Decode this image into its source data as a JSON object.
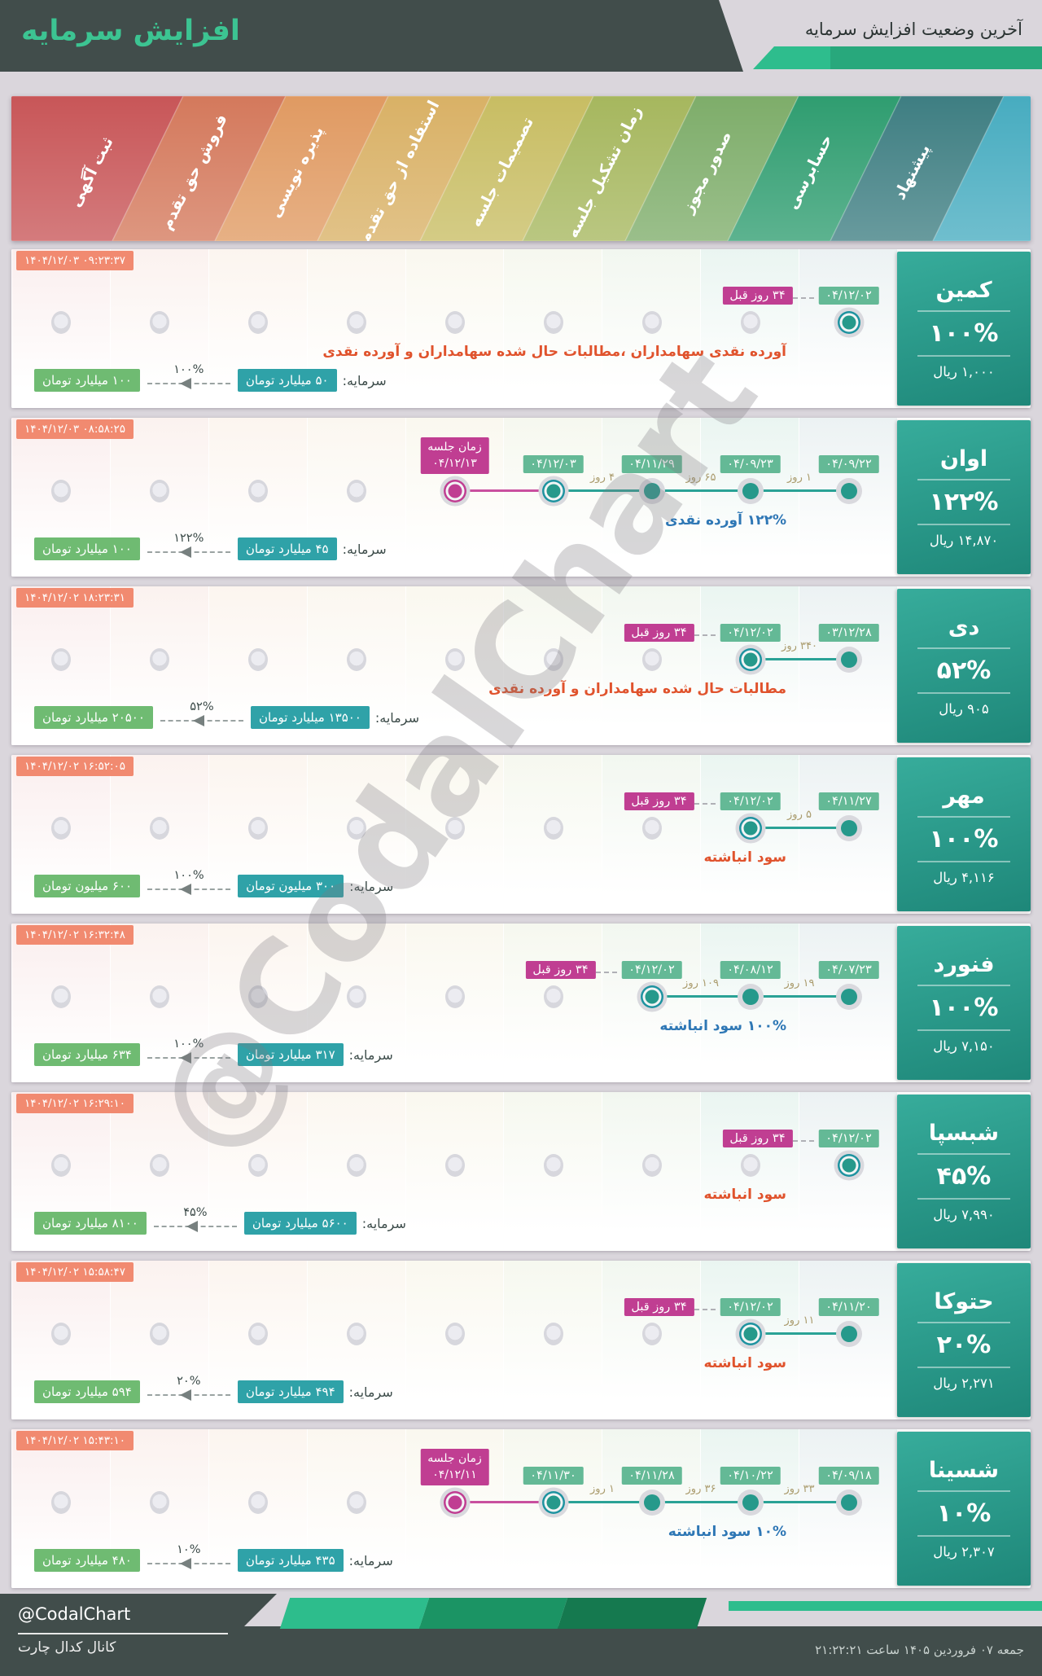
{
  "header": {
    "title": "افزایش سرمایه",
    "subtitle": "آخرین وضعیت افزایش سرمایه"
  },
  "banner": {
    "stages": [
      {
        "label": "ثبت آگهی",
        "color": "#c85658"
      },
      {
        "label": "فروش حق تقدم",
        "color": "#d4795c"
      },
      {
        "label": "پذیره نویسی",
        "color": "#e09a62"
      },
      {
        "label": "استفاده از حق تقدم",
        "color": "#d9b166"
      },
      {
        "label": "تصمیمات جلسه",
        "color": "#c8bd63"
      },
      {
        "label": "زمان تشکیل جلسه",
        "color": "#a6b75e"
      },
      {
        "label": "صدور مجوز",
        "color": "#7ead6a"
      },
      {
        "label": "حسابرسی",
        "color": "#2f9d70"
      },
      {
        "label": "پیشنهاد",
        "color": "#3e7e82"
      },
      {
        "label": "",
        "color": "#47acc0"
      }
    ]
  },
  "colors": {
    "accent_green": "#2ebd8d",
    "dark_slate": "#414d4b",
    "timestamp_bg": "#f18a70",
    "date_badge": "#64b996",
    "magenta_badge": "#c03e92",
    "dot_teal": "#26998b",
    "ring_outline": "#1e93a0",
    "line_teal": "#2aa296",
    "line_magenta": "#c9509f",
    "desc_red": "#e0532d",
    "desc_blue": "#2e77b5",
    "capital_from_bg": "#2fa2a8",
    "capital_to_bg": "#6fbb72",
    "company_box_top": "#37ac9b",
    "company_box_bottom": "#1e8779"
  },
  "watermark": "@CodalChart",
  "rows": [
    {
      "name": "کمین",
      "percent": "۱۰۰%",
      "price": "۱,۰۰۰ ریال",
      "timestamp": "۱۴۰۴/۱۲/۰۳ ۰۹:۲۳:۳۷",
      "description": "آورده نقدی سهامداران ،مطالبات حال شده سهامداران و آورده نقدی",
      "desc_color": "red",
      "capital_label": "سرمایه:",
      "capital_from": "۵۰ میلیارد تومان",
      "capital_to": "۱۰۰ میلیارد تومان",
      "capital_percent": "۱۰۰%",
      "prev_badge": "۳۴ روز قبل",
      "timeline": {
        "dots": [
          {
            "slot": 9,
            "type": "ringed",
            "date": "۰۴/۱۲/۰۲"
          }
        ],
        "gaps": []
      }
    },
    {
      "name": "اوان",
      "percent": "۱۲۲%",
      "price": "۱۴,۸۷۰ ریال",
      "timestamp": "۱۴۰۴/۱۲/۰۳ ۰۸:۵۸:۲۵",
      "description": "۱۲۲% آورده نقدی",
      "desc_color": "blue",
      "capital_label": "سرمایه:",
      "capital_from": "۴۵ میلیارد تومان",
      "capital_to": "۱۰۰ میلیارد تومان",
      "capital_percent": "۱۲۲%",
      "prev_badge": null,
      "timeline": {
        "dots": [
          {
            "slot": 9,
            "type": "plain",
            "date": "۰۴/۰۹/۲۲"
          },
          {
            "slot": 8,
            "type": "plain",
            "date": "۰۴/۰۹/۲۳"
          },
          {
            "slot": 7,
            "type": "plain",
            "date": "۰۴/۱۱/۲۹"
          },
          {
            "slot": 6,
            "type": "ringed",
            "date": "۰۴/۱۲/۰۳"
          },
          {
            "slot": 5,
            "type": "meeting",
            "label": "زمان جلسه",
            "date": "۰۴/۱۲/۱۳"
          }
        ],
        "gaps": [
          {
            "slots": [
              9,
              8
            ],
            "label": "۱ روز"
          },
          {
            "slots": [
              8,
              7
            ],
            "label": "۶۵ روز"
          },
          {
            "slots": [
              7,
              6
            ],
            "label": "۴ روز"
          }
        ]
      }
    },
    {
      "name": "دی",
      "percent": "۵۲%",
      "price": "۹۰۵ ریال",
      "timestamp": "۱۴۰۴/۱۲/۰۲ ۱۸:۲۳:۳۱",
      "description": "مطالبات حال شده سهامداران و آورده نقدی",
      "desc_color": "red",
      "capital_label": "سرمایه:",
      "capital_from": "۱۳۵۰۰ میلیارد تومان",
      "capital_to": "۲۰۵۰۰ میلیارد تومان",
      "capital_percent": "۵۲%",
      "prev_badge": "۳۴ روز قبل",
      "timeline": {
        "dots": [
          {
            "slot": 9,
            "type": "plain",
            "date": "۰۳/۱۲/۲۸"
          },
          {
            "slot": 8,
            "type": "ringed",
            "date": "۰۴/۱۲/۰۲"
          }
        ],
        "gaps": [
          {
            "slots": [
              9,
              8
            ],
            "label": "۳۴۰ روز"
          }
        ]
      }
    },
    {
      "name": "مهر",
      "percent": "۱۰۰%",
      "price": "۴,۱۱۶ ریال",
      "timestamp": "۱۴۰۴/۱۲/۰۲ ۱۶:۵۲:۰۵",
      "description": "سود انباشته",
      "desc_color": "red",
      "capital_label": "سرمایه:",
      "capital_from": "۳۰۰ میلیون تومان",
      "capital_to": "۶۰۰ میلیون تومان",
      "capital_percent": "۱۰۰%",
      "prev_badge": "۳۴ روز قبل",
      "timeline": {
        "dots": [
          {
            "slot": 9,
            "type": "plain",
            "date": "۰۴/۱۱/۲۷"
          },
          {
            "slot": 8,
            "type": "ringed",
            "date": "۰۴/۱۲/۰۲"
          }
        ],
        "gaps": [
          {
            "slots": [
              9,
              8
            ],
            "label": "۵ روز"
          }
        ]
      }
    },
    {
      "name": "فنورد",
      "percent": "۱۰۰%",
      "price": "۷,۱۵۰ ریال",
      "timestamp": "۱۴۰۴/۱۲/۰۲ ۱۶:۳۲:۴۸",
      "description": "۱۰۰% سود انباشته",
      "desc_color": "blue",
      "capital_label": "سرمایه:",
      "capital_from": "۳۱۷ میلیارد تومان",
      "capital_to": "۶۳۴ میلیارد تومان",
      "capital_percent": "۱۰۰%",
      "prev_badge": "۳۴ روز قبل",
      "timeline": {
        "dots": [
          {
            "slot": 9,
            "type": "plain",
            "date": "۰۴/۰۷/۲۳"
          },
          {
            "slot": 8,
            "type": "plain",
            "date": "۰۴/۰۸/۱۲"
          },
          {
            "slot": 7,
            "type": "ringed",
            "date": "۰۴/۱۲/۰۲"
          }
        ],
        "gaps": [
          {
            "slots": [
              9,
              8
            ],
            "label": "۱۹ روز"
          },
          {
            "slots": [
              8,
              7
            ],
            "label": "۱۰۹ روز"
          }
        ]
      }
    },
    {
      "name": "شبسپا",
      "percent": "۴۵%",
      "price": "۷,۹۹۰ ریال",
      "timestamp": "۱۴۰۴/۱۲/۰۲ ۱۶:۲۹:۱۰",
      "description": "سود انباشته",
      "desc_color": "red",
      "capital_label": "سرمایه:",
      "capital_from": "۵۶۰۰ میلیارد تومان",
      "capital_to": "۸۱۰۰ میلیارد تومان",
      "capital_percent": "۴۵%",
      "prev_badge": "۳۴ روز قبل",
      "timeline": {
        "dots": [
          {
            "slot": 9,
            "type": "ringed",
            "date": "۰۴/۱۲/۰۲"
          }
        ],
        "gaps": []
      }
    },
    {
      "name": "حتوکا",
      "percent": "۲۰%",
      "price": "۲,۲۷۱ ریال",
      "timestamp": "۱۴۰۴/۱۲/۰۲ ۱۵:۵۸:۴۷",
      "description": "سود انباشته",
      "desc_color": "red",
      "capital_label": "سرمایه:",
      "capital_from": "۴۹۴ میلیارد تومان",
      "capital_to": "۵۹۴ میلیارد تومان",
      "capital_percent": "۲۰%",
      "prev_badge": "۳۴ روز قبل",
      "timeline": {
        "dots": [
          {
            "slot": 9,
            "type": "plain",
            "date": "۰۴/۱۱/۲۰"
          },
          {
            "slot": 8,
            "type": "ringed",
            "date": "۰۴/۱۲/۰۲"
          }
        ],
        "gaps": [
          {
            "slots": [
              9,
              8
            ],
            "label": "۱۱ روز"
          }
        ]
      }
    },
    {
      "name": "شسینا",
      "percent": "۱۰%",
      "price": "۲,۳۰۷ ریال",
      "timestamp": "۱۴۰۴/۱۲/۰۲ ۱۵:۴۳:۱۰",
      "description": "۱۰% سود انباشته",
      "desc_color": "blue",
      "capital_label": "سرمایه:",
      "capital_from": "۴۳۵ میلیارد تومان",
      "capital_to": "۴۸۰ میلیارد تومان",
      "capital_percent": "۱۰%",
      "prev_badge": null,
      "timeline": {
        "dots": [
          {
            "slot": 9,
            "type": "plain",
            "date": "۰۴/۰۹/۱۸"
          },
          {
            "slot": 8,
            "type": "plain",
            "date": "۰۴/۱۰/۲۲"
          },
          {
            "slot": 7,
            "type": "plain",
            "date": "۰۴/۱۱/۲۸"
          },
          {
            "slot": 6,
            "type": "ringed",
            "date": "۰۴/۱۱/۳۰"
          },
          {
            "slot": 5,
            "type": "meeting",
            "label": "زمان جلسه",
            "date": "۰۴/۱۲/۱۱"
          }
        ],
        "gaps": [
          {
            "slots": [
              9,
              8
            ],
            "label": "۳۳ روز"
          },
          {
            "slots": [
              8,
              7
            ],
            "label": "۳۶ روز"
          },
          {
            "slots": [
              7,
              6
            ],
            "label": "۱ روز"
          }
        ]
      }
    }
  ],
  "footer": {
    "handle": "@CodalChart",
    "channel": "کانال کدال چارت",
    "datetime": "جمعه ۰۷ فروردین ۱۴۰۵ ساعت ۲۱:۲۲:۲۱"
  }
}
